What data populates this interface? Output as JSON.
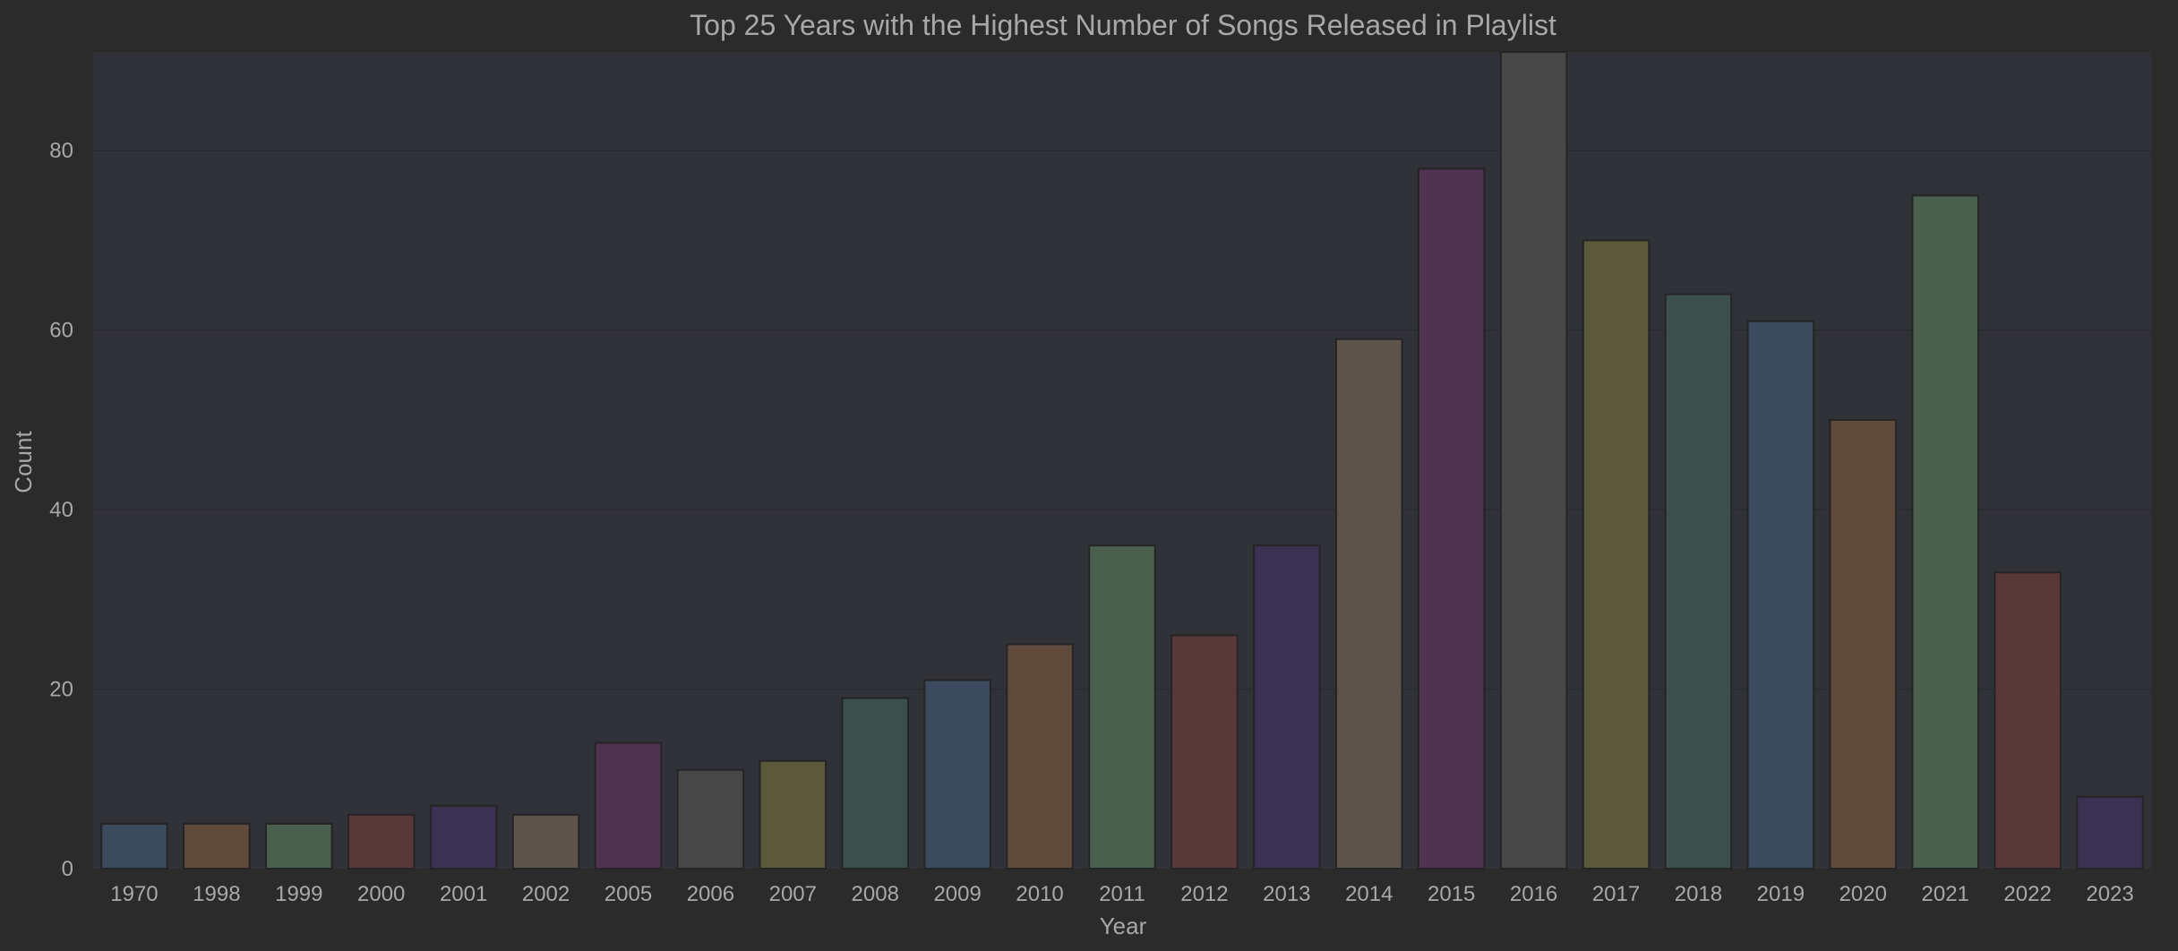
{
  "chart_data": {
    "type": "bar",
    "title": "Top 25 Years with the Highest Number of Songs Released in Playlist",
    "xlabel": "Year",
    "ylabel": "Count",
    "categories": [
      "1970",
      "1998",
      "1999",
      "2000",
      "2001",
      "2002",
      "2005",
      "2006",
      "2007",
      "2008",
      "2009",
      "2010",
      "2011",
      "2012",
      "2013",
      "2014",
      "2015",
      "2016",
      "2017",
      "2018",
      "2019",
      "2020",
      "2021",
      "2022",
      "2023"
    ],
    "values": [
      5,
      5,
      5,
      6,
      7,
      6,
      14,
      11,
      12,
      19,
      21,
      25,
      36,
      26,
      36,
      59,
      78,
      91,
      70,
      64,
      61,
      50,
      75,
      33,
      8
    ],
    "ylim": [
      0,
      91
    ],
    "yticks": [
      0,
      20,
      40,
      60,
      80
    ],
    "grid": true,
    "bar_colors": [
      "#3b4a5c",
      "#5f4a3c",
      "#4a5f4d",
      "#583838",
      "#3b3152",
      "#5c534a",
      "#4f3350",
      "#474747",
      "#5a5a3a",
      "#3b504d",
      "#3b4a5c",
      "#5f4a3c",
      "#4a5f4d",
      "#583838",
      "#3b3152",
      "#5c534a",
      "#4f3350",
      "#474747",
      "#5a5a3a",
      "#3b504d",
      "#3b4a5c",
      "#5f4a3c",
      "#4a5f4d",
      "#583838",
      "#3b3152"
    ],
    "background_color": "#2b2b2b",
    "plot_background_color": "#313138",
    "text_color": "#a8a8a8"
  }
}
